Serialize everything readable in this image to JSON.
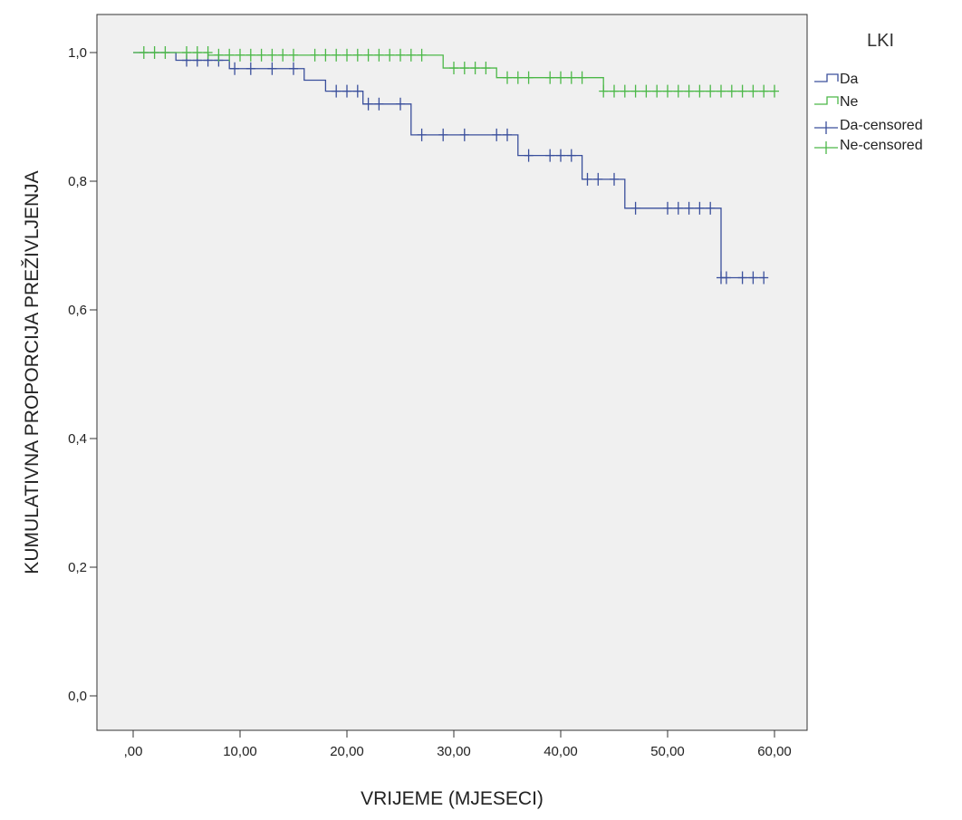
{
  "chart_data": {
    "type": "line",
    "subtype": "kaplan-meier-step",
    "xlabel": "VRIJEME (MJESECI)",
    "ylabel": "KUMULATIVNA PROPORCIJA PREŽIVLJENJA",
    "xlim": [
      0,
      60
    ],
    "ylim": [
      0,
      1.0
    ],
    "x_ticks": [
      0,
      10,
      20,
      30,
      40,
      50,
      60
    ],
    "x_tick_labels": [
      ",00",
      "10,00",
      "20,00",
      "30,00",
      "40,00",
      "50,00",
      "60,00"
    ],
    "y_ticks": [
      0,
      0.2,
      0.4,
      0.6,
      0.8,
      1.0
    ],
    "y_tick_labels": [
      "0,0",
      "0,2",
      "0,4",
      "0,6",
      "0,8",
      "1,0"
    ],
    "grid": false,
    "plot_background": "#f0f0f0",
    "legend": {
      "title": "LKI",
      "position": "top-right, outside plot",
      "entries": [
        "Da",
        "Ne",
        "Da-censored",
        "Ne-censored"
      ]
    },
    "series": [
      {
        "name": "Da",
        "color": "#3a4f9c",
        "steps": [
          [
            0,
            1.0
          ],
          [
            4,
            0.988
          ],
          [
            9,
            0.975
          ],
          [
            16,
            0.957
          ],
          [
            18,
            0.94
          ],
          [
            21.5,
            0.92
          ],
          [
            26,
            0.872
          ],
          [
            36,
            0.84
          ],
          [
            42,
            0.803
          ],
          [
            46,
            0.758
          ],
          [
            55,
            0.65
          ],
          [
            59,
            0.65
          ]
        ],
        "censored": [
          [
            5,
            0.988
          ],
          [
            6,
            0.988
          ],
          [
            7,
            0.988
          ],
          [
            8,
            0.988
          ],
          [
            9.5,
            0.975
          ],
          [
            11,
            0.975
          ],
          [
            13,
            0.975
          ],
          [
            15,
            0.975
          ],
          [
            19,
            0.94
          ],
          [
            20,
            0.94
          ],
          [
            21,
            0.94
          ],
          [
            22,
            0.92
          ],
          [
            23,
            0.92
          ],
          [
            25,
            0.92
          ],
          [
            27,
            0.872
          ],
          [
            29,
            0.872
          ],
          [
            31,
            0.872
          ],
          [
            34,
            0.872
          ],
          [
            35,
            0.872
          ],
          [
            37,
            0.84
          ],
          [
            39,
            0.84
          ],
          [
            40,
            0.84
          ],
          [
            41,
            0.84
          ],
          [
            42.5,
            0.803
          ],
          [
            43.5,
            0.803
          ],
          [
            45,
            0.803
          ],
          [
            47,
            0.758
          ],
          [
            50,
            0.758
          ],
          [
            51,
            0.758
          ],
          [
            52,
            0.758
          ],
          [
            53,
            0.758
          ],
          [
            54,
            0.758
          ],
          [
            55,
            0.65
          ],
          [
            55.5,
            0.65
          ],
          [
            57,
            0.65
          ],
          [
            58,
            0.65
          ],
          [
            59,
            0.65
          ]
        ]
      },
      {
        "name": "Ne",
        "color": "#4cb848",
        "steps": [
          [
            0,
            1.0
          ],
          [
            7,
            0.996
          ],
          [
            29,
            0.976
          ],
          [
            34,
            0.961
          ],
          [
            44,
            0.94
          ],
          [
            60,
            0.94
          ]
        ],
        "censored": [
          [
            1,
            1.0
          ],
          [
            2,
            1.0
          ],
          [
            3,
            1.0
          ],
          [
            5,
            1.0
          ],
          [
            6,
            1.0
          ],
          [
            7,
            1.0
          ],
          [
            8,
            0.996
          ],
          [
            9,
            0.996
          ],
          [
            10,
            0.996
          ],
          [
            11,
            0.996
          ],
          [
            12,
            0.996
          ],
          [
            13,
            0.996
          ],
          [
            14,
            0.996
          ],
          [
            15,
            0.996
          ],
          [
            17,
            0.996
          ],
          [
            18,
            0.996
          ],
          [
            19,
            0.996
          ],
          [
            20,
            0.996
          ],
          [
            21,
            0.996
          ],
          [
            22,
            0.996
          ],
          [
            23,
            0.996
          ],
          [
            24,
            0.996
          ],
          [
            25,
            0.996
          ],
          [
            26,
            0.996
          ],
          [
            27,
            0.996
          ],
          [
            30,
            0.976
          ],
          [
            31,
            0.976
          ],
          [
            32,
            0.976
          ],
          [
            33,
            0.976
          ],
          [
            35,
            0.961
          ],
          [
            36,
            0.961
          ],
          [
            37,
            0.961
          ],
          [
            39,
            0.961
          ],
          [
            40,
            0.961
          ],
          [
            41,
            0.961
          ],
          [
            42,
            0.961
          ],
          [
            44,
            0.94
          ],
          [
            45,
            0.94
          ],
          [
            46,
            0.94
          ],
          [
            47,
            0.94
          ],
          [
            48,
            0.94
          ],
          [
            49,
            0.94
          ],
          [
            50,
            0.94
          ],
          [
            51,
            0.94
          ],
          [
            52,
            0.94
          ],
          [
            53,
            0.94
          ],
          [
            54,
            0.94
          ],
          [
            55,
            0.94
          ],
          [
            56,
            0.94
          ],
          [
            57,
            0.94
          ],
          [
            58,
            0.94
          ],
          [
            59,
            0.94
          ],
          [
            60,
            0.94
          ]
        ]
      }
    ]
  }
}
